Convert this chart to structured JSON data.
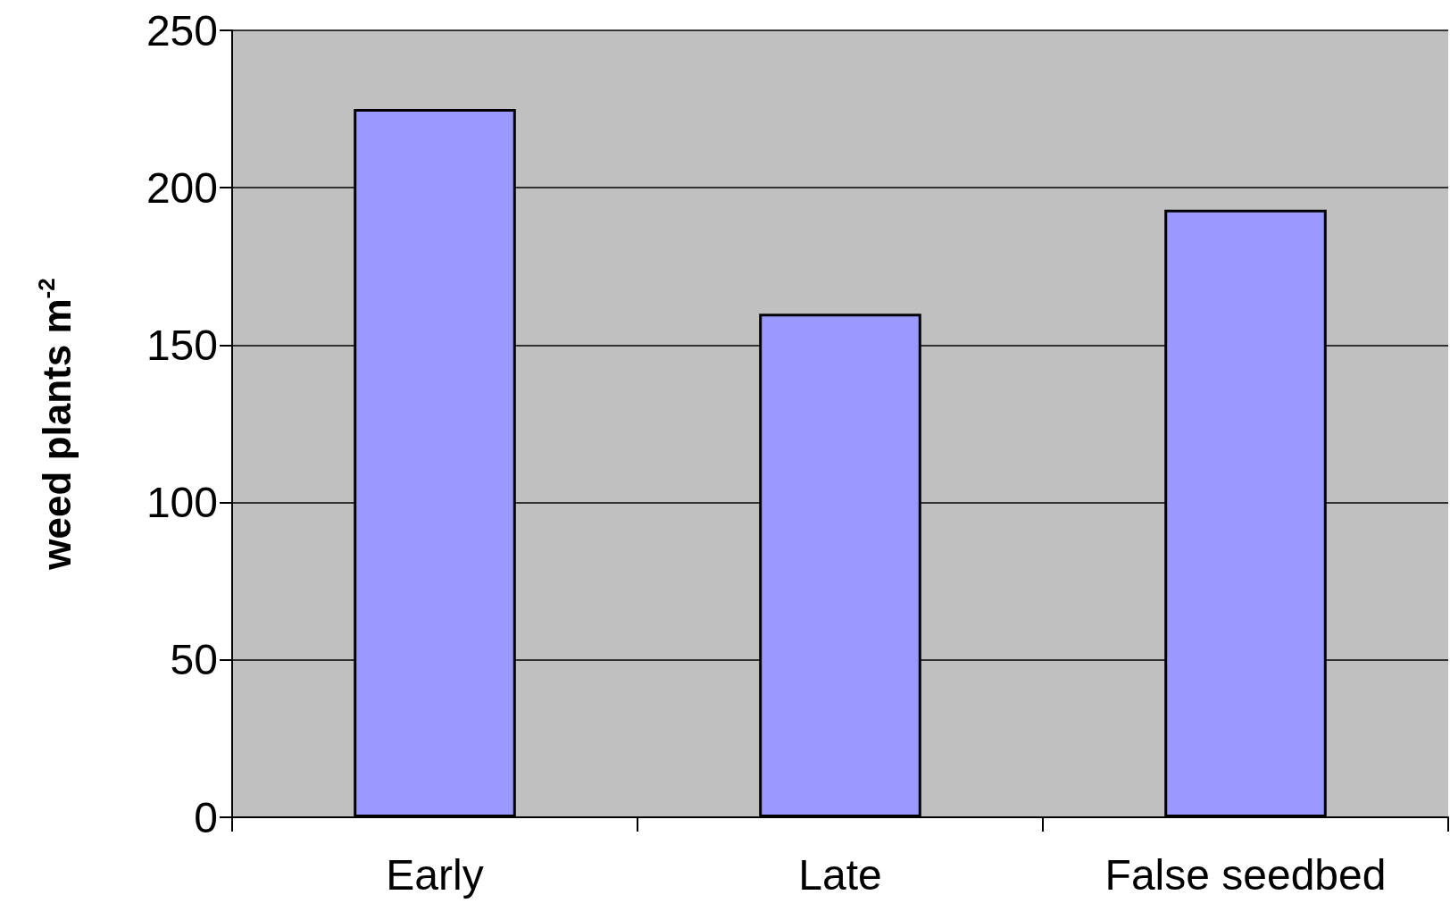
{
  "chart_data": {
    "type": "bar",
    "ylabel": "weed plants m$^{-2}$",
    "categories": [
      "Early",
      "Late",
      "False seedbed"
    ],
    "values": [
      225,
      160,
      193
    ],
    "color": "#9999ff",
    "ylim": [
      0,
      250
    ],
    "yticks": [
      0,
      50,
      100,
      150,
      200,
      250
    ],
    "grid": "y"
  }
}
